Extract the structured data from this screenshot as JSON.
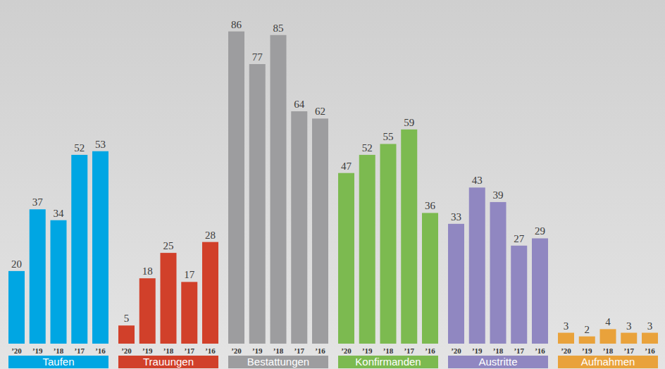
{
  "chart_data": [
    {
      "type": "bar",
      "title": "Taufen",
      "categories": [
        "’20",
        "’19",
        "’18",
        "’17",
        "’16"
      ],
      "values": [
        20,
        37,
        34,
        52,
        53
      ],
      "color": "#00a6e3",
      "ylim": [
        0,
        90
      ],
      "data_labels": true,
      "tick_labels": "x"
    },
    {
      "type": "bar",
      "title": "Trauungen",
      "categories": [
        "’20",
        "’19",
        "’18",
        "’17",
        "’16"
      ],
      "values": [
        5,
        18,
        25,
        17,
        28
      ],
      "color": "#d1402a",
      "ylim": [
        0,
        90
      ],
      "data_labels": true,
      "tick_labels": "x"
    },
    {
      "type": "bar",
      "title": "Bestattungen",
      "categories": [
        "’20",
        "’19",
        "’18",
        "’17",
        "’16"
      ],
      "values": [
        86,
        77,
        85,
        64,
        62
      ],
      "color": "#9d9d9f",
      "ylim": [
        0,
        90
      ],
      "data_labels": true,
      "tick_labels": "x"
    },
    {
      "type": "bar",
      "title": "Konfirmanden",
      "categories": [
        "’20",
        "’19",
        "’18",
        "’17",
        "’16"
      ],
      "values": [
        47,
        52,
        55,
        59,
        36
      ],
      "color": "#7cba50",
      "ylim": [
        0,
        90
      ],
      "data_labels": true,
      "tick_labels": "x"
    },
    {
      "type": "bar",
      "title": "Austritte",
      "categories": [
        "’20",
        "’19",
        "’18",
        "’17",
        "’16"
      ],
      "values": [
        33,
        43,
        39,
        27,
        29
      ],
      "color": "#9087c1",
      "ylim": [
        0,
        90
      ],
      "data_labels": true,
      "tick_labels": "x"
    },
    {
      "type": "bar",
      "title": "Aufnahmen",
      "categories": [
        "’20",
        "’19",
        "’18",
        "’17",
        "’16"
      ],
      "values": [
        3,
        2,
        4,
        3,
        3
      ],
      "color": "#e9a23b",
      "ylim": [
        0,
        90
      ],
      "data_labels": true,
      "tick_labels": "x"
    }
  ]
}
